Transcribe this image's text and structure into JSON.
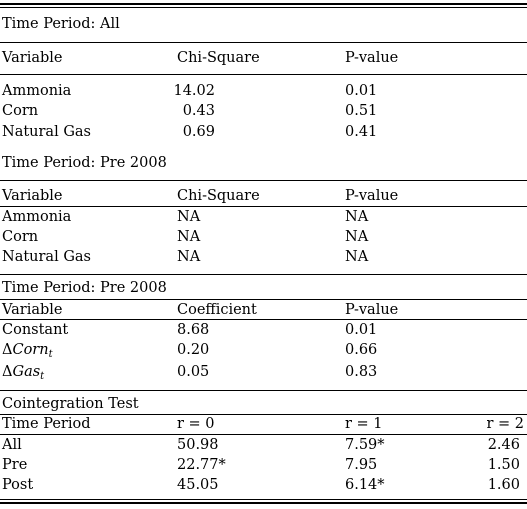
{
  "sections": [
    {
      "title": "Time Period: All",
      "headers": [
        "Variable",
        "Chi-Square",
        "P-value"
      ],
      "rows": [
        [
          "Ammonia",
          "14.02",
          "0.01"
        ],
        [
          "Corn",
          "0.43",
          "0.51"
        ],
        [
          "Natural Gas",
          "0.69",
          "0.41"
        ]
      ]
    },
    {
      "title": "Time Period: Pre 2008",
      "headers": [
        "Variable",
        "Chi-Square",
        "P-value"
      ],
      "rows": [
        [
          "Ammonia",
          "NA",
          "NA"
        ],
        [
          "Corn",
          "NA",
          "NA"
        ],
        [
          "Natural Gas",
          "NA",
          "NA"
        ]
      ]
    },
    {
      "title": "Time Period: Pre 2008",
      "headers": [
        "Variable",
        "Coefficient",
        "P-value"
      ],
      "rows": [
        [
          "Constant",
          "8.68",
          "0.01"
        ],
        [
          {
            "symbol": "Δ",
            "name": "Corn",
            "sub": "t"
          },
          "0.20",
          "0.66"
        ],
        [
          {
            "symbol": "Δ",
            "name": "Gas",
            "sub": "t"
          },
          "0.05",
          "0.83"
        ]
      ]
    },
    {
      "title": "Cointegration Test",
      "headers": [
        "Time Period",
        "r = 0",
        "r = 1",
        "r = 2"
      ],
      "rows": [
        [
          "All",
          "50.98",
          "7.59*",
          "2.46"
        ],
        [
          "Pre",
          "22.77*",
          "7.95",
          "1.50"
        ],
        [
          "Post",
          "45.05",
          "6.14*",
          "1.60"
        ]
      ]
    }
  ]
}
